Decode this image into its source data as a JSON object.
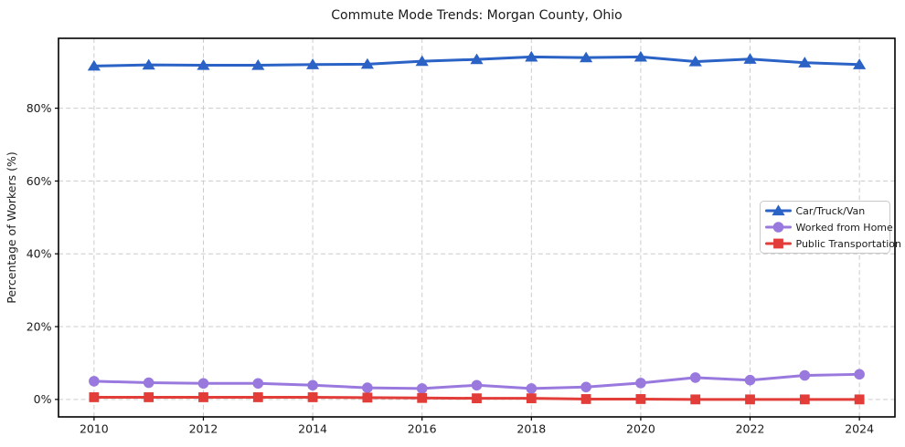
{
  "figure": {
    "title": "Commute Mode Trends: Morgan County, Ohio"
  },
  "chart_data": {
    "type": "line",
    "title": "Commute Mode Trends: Morgan County, Ohio",
    "xlabel": "",
    "ylabel": "Percentage of Workers (%)",
    "x": [
      2010,
      2011,
      2012,
      2013,
      2014,
      2015,
      2016,
      2017,
      2018,
      2019,
      2020,
      2021,
      2022,
      2023,
      2024
    ],
    "xticks": [
      2010,
      2012,
      2014,
      2016,
      2018,
      2020,
      2022,
      2024
    ],
    "xtick_labels": [
      "2010",
      "2012",
      "2014",
      "2016",
      "2018",
      "2020",
      "2022",
      "2024"
    ],
    "yticks": [
      0,
      20,
      40,
      60,
      80
    ],
    "ytick_labels": [
      "0%",
      "20%",
      "40%",
      "60%",
      "80%"
    ],
    "xlim": [
      2009.35,
      2024.65
    ],
    "ylim": [
      -4.8,
      99.2
    ],
    "grid": true,
    "grid_style": "dashed",
    "legend_position": "center-right",
    "series": [
      {
        "name": "Car/Truck/Van",
        "marker": "triangle",
        "color": "#2b62c6",
        "values": [
          91.6,
          91.9,
          91.8,
          91.8,
          92.0,
          92.1,
          92.9,
          93.4,
          94.1,
          93.9,
          94.1,
          92.8,
          93.5,
          92.5,
          92.0
        ]
      },
      {
        "name": "Worked from Home",
        "marker": "circle",
        "color": "#9a79de",
        "values": [
          5.0,
          4.6,
          4.4,
          4.4,
          3.9,
          3.2,
          3.0,
          3.9,
          3.0,
          3.4,
          4.5,
          6.0,
          5.3,
          6.6,
          6.9
        ]
      },
      {
        "name": "Public Transportation",
        "marker": "square",
        "color": "#e23d39",
        "values": [
          0.6,
          0.6,
          0.6,
          0.6,
          0.6,
          0.5,
          0.4,
          0.3,
          0.3,
          0.1,
          0.1,
          0.0,
          0.0,
          0.0,
          0.0
        ]
      }
    ]
  },
  "colors": {
    "background": "#ffffff",
    "grid": "#cccccc",
    "spine": "#000000",
    "text": "#1a1a1a",
    "legend_border": "#c9c9c9",
    "legend_background": "#ffffff"
  }
}
